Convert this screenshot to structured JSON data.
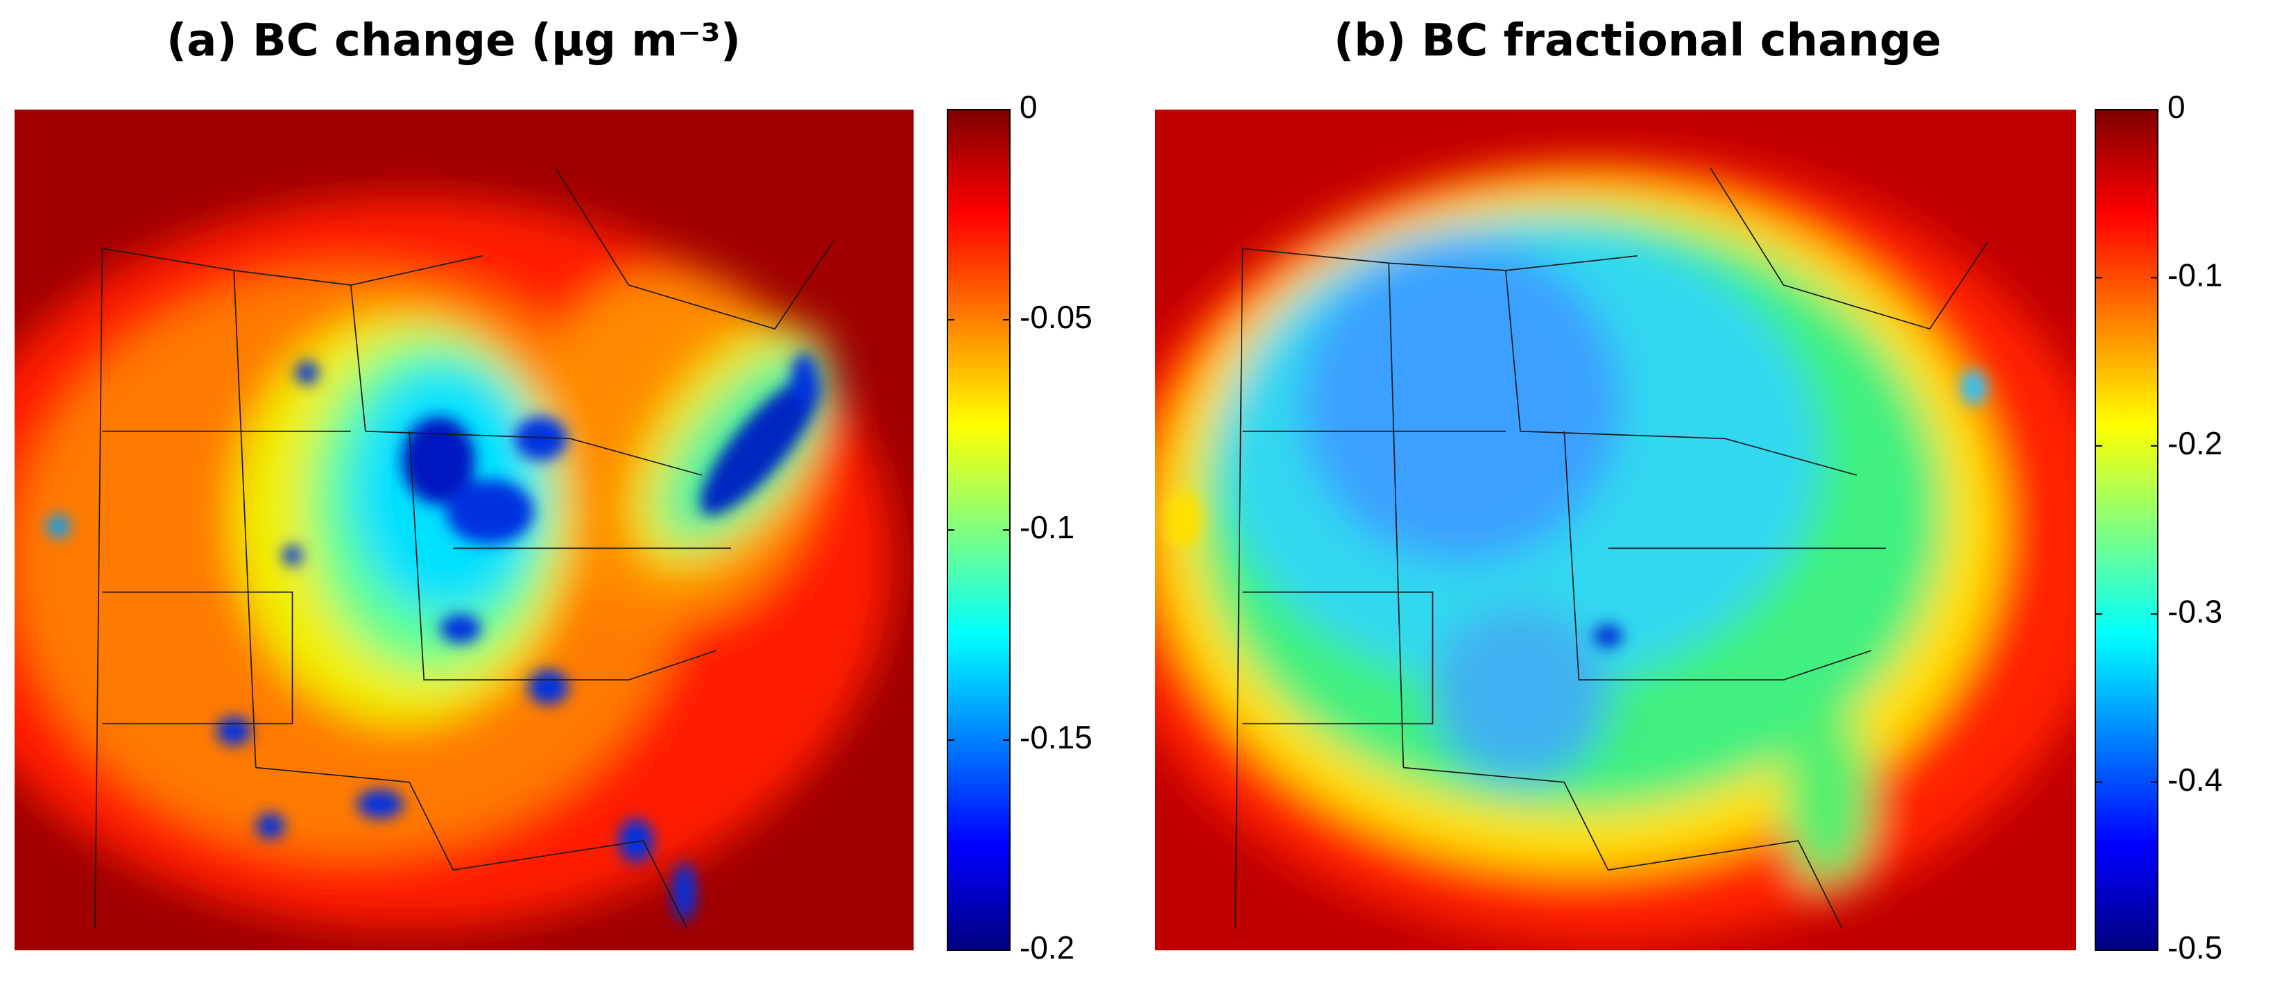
{
  "panels": [
    {
      "title": "(a) BC change (μg m⁻³)",
      "colorbar": {
        "lim": [
          -0.2,
          0
        ],
        "ticks": [
          0,
          -0.05,
          -0.1,
          -0.15,
          -0.2
        ]
      }
    },
    {
      "title": "(b) BC fractional change",
      "colorbar": {
        "lim": [
          -0.5,
          0
        ],
        "ticks": [
          0,
          -0.1,
          -0.2,
          -0.3,
          -0.4,
          -0.5
        ]
      }
    }
  ]
}
